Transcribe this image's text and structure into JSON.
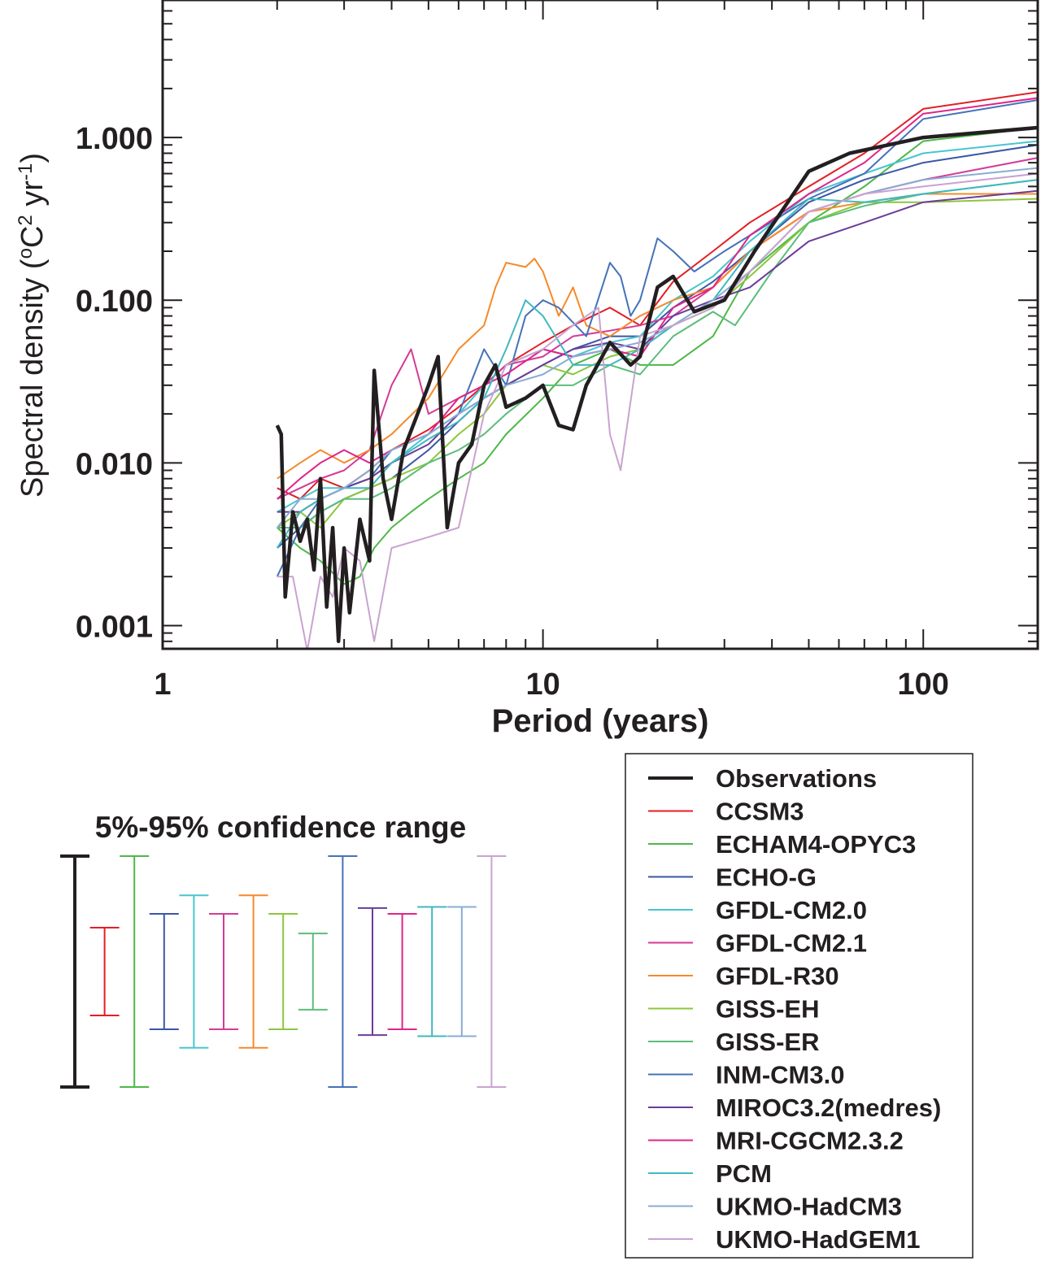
{
  "chart_data": {
    "type": "line",
    "xscale": "log",
    "yscale": "log",
    "xlabel": "Period (years)",
    "ylabel": "Spectral density (°C² yr⁻¹)",
    "ylabel_parts": [
      "Spectral density (",
      "o",
      "C",
      "2",
      " yr",
      "-1",
      ")"
    ],
    "xlim": [
      1,
      200
    ],
    "ylim": [
      0.00072,
      7
    ],
    "x_ticks": [
      {
        "value": 1,
        "label": "1"
      },
      {
        "value": 10,
        "label": "10"
      },
      {
        "value": 100,
        "label": "100"
      }
    ],
    "y_ticks": [
      {
        "value": 0.001,
        "label": "0.001"
      },
      {
        "value": 0.01,
        "label": "0.010"
      },
      {
        "value": 0.1,
        "label": "0.100"
      },
      {
        "value": 1,
        "label": "1.000"
      }
    ],
    "legend_placement": "bottom-right",
    "series": [
      {
        "name": "Observations",
        "color": "#231f20",
        "width": 4.5,
        "x": [
          2.0,
          2.05,
          2.1,
          2.2,
          2.3,
          2.4,
          2.5,
          2.6,
          2.7,
          2.8,
          2.9,
          3.0,
          3.1,
          3.3,
          3.5,
          3.6,
          3.8,
          4.0,
          4.3,
          4.6,
          5.0,
          5.3,
          5.6,
          6.0,
          6.5,
          7.0,
          7.5,
          8.0,
          9.0,
          10.0,
          11.0,
          12.0,
          13.0,
          15.0,
          17.0,
          18.0,
          20.0,
          22.0,
          25.0,
          30.0,
          36.0,
          50.0,
          64.0,
          100.0,
          200.0
        ],
        "y": [
          0.017,
          0.015,
          0.0015,
          0.005,
          0.0033,
          0.0045,
          0.0022,
          0.008,
          0.0013,
          0.004,
          0.0008,
          0.003,
          0.0012,
          0.0045,
          0.0025,
          0.037,
          0.008,
          0.0045,
          0.012,
          0.018,
          0.03,
          0.045,
          0.004,
          0.01,
          0.013,
          0.03,
          0.04,
          0.022,
          0.025,
          0.03,
          0.017,
          0.016,
          0.03,
          0.055,
          0.04,
          0.045,
          0.12,
          0.14,
          0.085,
          0.1,
          0.2,
          0.62,
          0.8,
          1.0,
          1.15
        ]
      },
      {
        "name": "CCSM3",
        "color": "#e41e26",
        "width": 2,
        "x": [
          2.0,
          2.3,
          2.6,
          3.0,
          3.5,
          4.0,
          5.0,
          6.0,
          7.0,
          8.0,
          10.0,
          12.0,
          15.0,
          18.0,
          22.0,
          28.0,
          35.0,
          50.0,
          70.0,
          100.0,
          200.0
        ],
        "y": [
          0.007,
          0.006,
          0.008,
          0.007,
          0.009,
          0.012,
          0.016,
          0.022,
          0.03,
          0.04,
          0.055,
          0.07,
          0.09,
          0.07,
          0.13,
          0.2,
          0.3,
          0.5,
          0.8,
          1.5,
          1.9
        ]
      },
      {
        "name": "ECHAM4-OPYC3",
        "color": "#4db848",
        "width": 2,
        "x": [
          2.0,
          2.3,
          2.6,
          3.0,
          3.3,
          3.6,
          4.0,
          4.5,
          5.0,
          6.0,
          7.0,
          8.0,
          10.0,
          12.0,
          15.0,
          18.0,
          22.0,
          28.0,
          35.0,
          50.0,
          70.0,
          100.0,
          200.0
        ],
        "y": [
          0.004,
          0.003,
          0.0025,
          0.0018,
          0.002,
          0.003,
          0.004,
          0.005,
          0.006,
          0.008,
          0.01,
          0.015,
          0.025,
          0.04,
          0.05,
          0.04,
          0.04,
          0.06,
          0.15,
          0.3,
          0.5,
          0.95,
          1.15
        ]
      },
      {
        "name": "ECHO-G",
        "color": "#3b56a6",
        "width": 2,
        "x": [
          2.0,
          2.3,
          2.6,
          3.0,
          3.5,
          4.0,
          5.0,
          6.0,
          7.0,
          8.0,
          10.0,
          12.0,
          15.0,
          18.0,
          22.0,
          28.0,
          35.0,
          50.0,
          70.0,
          100.0,
          200.0
        ],
        "y": [
          0.003,
          0.004,
          0.005,
          0.006,
          0.007,
          0.008,
          0.012,
          0.018,
          0.025,
          0.03,
          0.04,
          0.05,
          0.06,
          0.06,
          0.09,
          0.13,
          0.2,
          0.4,
          0.55,
          0.7,
          0.9
        ]
      },
      {
        "name": "GFDL-CM2.0",
        "color": "#48c5d0",
        "width": 2,
        "x": [
          2.0,
          2.3,
          2.6,
          3.0,
          3.5,
          4.0,
          5.0,
          6.0,
          7.0,
          8.0,
          10.0,
          12.0,
          15.0,
          18.0,
          22.0,
          28.0,
          35.0,
          50.0,
          70.0,
          100.0,
          200.0
        ],
        "y": [
          0.005,
          0.006,
          0.007,
          0.007,
          0.008,
          0.01,
          0.015,
          0.02,
          0.03,
          0.04,
          0.05,
          0.045,
          0.055,
          0.06,
          0.1,
          0.14,
          0.23,
          0.45,
          0.6,
          0.8,
          0.95
        ]
      },
      {
        "name": "GFDL-CM2.1",
        "color": "#d43a96",
        "width": 2,
        "x": [
          2.0,
          2.3,
          2.6,
          3.0,
          3.5,
          4.0,
          4.5,
          5.0,
          6.0,
          7.0,
          8.0,
          10.0,
          12.0,
          15.0,
          18.0,
          22.0,
          28.0,
          35.0,
          50.0,
          70.0,
          100.0,
          200.0
        ],
        "y": [
          0.006,
          0.007,
          0.008,
          0.009,
          0.012,
          0.03,
          0.05,
          0.02,
          0.025,
          0.03,
          0.04,
          0.045,
          0.06,
          0.065,
          0.07,
          0.08,
          0.12,
          0.2,
          0.35,
          0.45,
          0.55,
          0.75
        ]
      },
      {
        "name": "GFDL-R30",
        "color": "#f58a2a",
        "width": 2,
        "x": [
          2.0,
          2.3,
          2.6,
          3.0,
          3.5,
          4.0,
          5.0,
          6.0,
          7.0,
          7.5,
          8.0,
          9.0,
          9.5,
          10.0,
          11.0,
          12.0,
          13.0,
          15.0,
          18.0,
          22.0,
          28.0,
          35.0,
          50.0,
          70.0,
          100.0,
          200.0
        ],
        "y": [
          0.008,
          0.01,
          0.012,
          0.01,
          0.012,
          0.015,
          0.025,
          0.05,
          0.07,
          0.12,
          0.17,
          0.16,
          0.18,
          0.15,
          0.08,
          0.12,
          0.07,
          0.06,
          0.08,
          0.1,
          0.12,
          0.2,
          0.35,
          0.4,
          0.45,
          0.45
        ]
      },
      {
        "name": "GISS-EH",
        "color": "#8dc63f",
        "width": 2,
        "x": [
          2.0,
          2.3,
          2.6,
          3.0,
          3.5,
          4.0,
          5.0,
          6.0,
          7.0,
          8.0,
          10.0,
          12.0,
          15.0,
          18.0,
          22.0,
          28.0,
          35.0,
          50.0,
          70.0,
          100.0,
          200.0
        ],
        "y": [
          0.004,
          0.005,
          0.004,
          0.006,
          0.007,
          0.008,
          0.01,
          0.015,
          0.02,
          0.03,
          0.04,
          0.035,
          0.045,
          0.05,
          0.07,
          0.09,
          0.14,
          0.3,
          0.4,
          0.4,
          0.42
        ]
      },
      {
        "name": "GISS-ER",
        "color": "#5bbd7b",
        "width": 2,
        "x": [
          2.0,
          2.3,
          2.6,
          3.0,
          3.5,
          4.0,
          5.0,
          6.0,
          7.0,
          8.0,
          10.0,
          12.0,
          15.0,
          18.0,
          22.0,
          28.0,
          32.0,
          40.0,
          50.0,
          70.0,
          100.0,
          200.0
        ],
        "y": [
          0.004,
          0.004,
          0.005,
          0.006,
          0.006,
          0.007,
          0.01,
          0.012,
          0.015,
          0.02,
          0.03,
          0.03,
          0.04,
          0.035,
          0.06,
          0.085,
          0.07,
          0.15,
          0.3,
          0.38,
          0.45,
          0.55
        ]
      },
      {
        "name": "INM-CM3.0",
        "color": "#4472b8",
        "width": 2,
        "x": [
          2.0,
          2.3,
          2.6,
          3.0,
          3.5,
          4.0,
          5.0,
          6.0,
          7.0,
          8.0,
          9.0,
          10.0,
          11.0,
          13.0,
          15.0,
          16.0,
          17.0,
          18.0,
          20.0,
          22.0,
          25.0,
          30.0,
          35.0,
          50.0,
          70.0,
          100.0,
          200.0
        ],
        "y": [
          0.002,
          0.004,
          0.006,
          0.007,
          0.008,
          0.012,
          0.015,
          0.02,
          0.05,
          0.03,
          0.08,
          0.1,
          0.09,
          0.06,
          0.17,
          0.14,
          0.08,
          0.1,
          0.24,
          0.2,
          0.15,
          0.2,
          0.25,
          0.42,
          0.6,
          1.3,
          1.7
        ]
      },
      {
        "name": "MIROC3.2(medres)",
        "color": "#6a3d9a",
        "width": 2,
        "x": [
          2.0,
          2.3,
          2.6,
          3.0,
          3.5,
          4.0,
          5.0,
          6.0,
          7.0,
          8.0,
          10.0,
          12.0,
          15.0,
          18.0,
          22.0,
          28.0,
          35.0,
          50.0,
          70.0,
          100.0,
          200.0
        ],
        "y": [
          0.005,
          0.005,
          0.006,
          0.007,
          0.008,
          0.01,
          0.013,
          0.02,
          0.025,
          0.03,
          0.04,
          0.05,
          0.055,
          0.05,
          0.08,
          0.1,
          0.12,
          0.23,
          0.3,
          0.4,
          0.47
        ]
      },
      {
        "name": "MRI-CGCM2.3.2",
        "color": "#e0248a",
        "width": 2,
        "x": [
          2.0,
          2.3,
          2.6,
          3.0,
          3.5,
          4.0,
          5.0,
          6.0,
          7.0,
          8.0,
          10.0,
          12.0,
          15.0,
          18.0,
          22.0,
          28.0,
          35.0,
          50.0,
          70.0,
          100.0,
          200.0
        ],
        "y": [
          0.006,
          0.008,
          0.01,
          0.012,
          0.01,
          0.012,
          0.015,
          0.025,
          0.03,
          0.035,
          0.05,
          0.045,
          0.05,
          0.045,
          0.09,
          0.12,
          0.25,
          0.45,
          0.7,
          1.4,
          1.75
        ]
      },
      {
        "name": "PCM",
        "color": "#40b8c0",
        "width": 2,
        "x": [
          2.0,
          2.3,
          2.6,
          3.0,
          3.5,
          4.0,
          5.0,
          6.0,
          7.0,
          8.0,
          9.0,
          10.0,
          12.0,
          15.0,
          18.0,
          22.0,
          28.0,
          35.0,
          50.0,
          70.0,
          100.0,
          200.0
        ],
        "y": [
          0.003,
          0.005,
          0.006,
          0.007,
          0.007,
          0.01,
          0.014,
          0.018,
          0.025,
          0.05,
          0.1,
          0.08,
          0.04,
          0.04,
          0.05,
          0.07,
          0.1,
          0.2,
          0.42,
          0.4,
          0.45,
          0.55
        ]
      },
      {
        "name": "UKMO-HadCM3",
        "color": "#89acd4",
        "width": 2,
        "x": [
          2.0,
          2.3,
          2.6,
          3.0,
          3.5,
          4.0,
          5.0,
          6.0,
          7.0,
          8.0,
          10.0,
          12.0,
          15.0,
          18.0,
          22.0,
          28.0,
          35.0,
          50.0,
          70.0,
          100.0,
          200.0
        ],
        "y": [
          0.004,
          0.006,
          0.006,
          0.007,
          0.009,
          0.012,
          0.015,
          0.02,
          0.025,
          0.03,
          0.035,
          0.045,
          0.05,
          0.055,
          0.07,
          0.1,
          0.15,
          0.35,
          0.45,
          0.55,
          0.65
        ]
      },
      {
        "name": "UKMO-HadGEM1",
        "color": "#c9a3d0",
        "width": 2,
        "x": [
          2.0,
          2.2,
          2.4,
          2.6,
          2.8,
          3.0,
          3.3,
          3.6,
          4.0,
          5.0,
          6.0,
          7.0,
          8.0,
          10.0,
          12.0,
          14.0,
          15.0,
          16.0,
          18.0,
          22.0,
          28.0,
          35.0,
          50.0,
          70.0,
          100.0,
          200.0
        ],
        "y": [
          0.002,
          0.002,
          0.0007,
          0.002,
          0.0015,
          0.003,
          0.0025,
          0.0008,
          0.003,
          0.0035,
          0.004,
          0.02,
          0.04,
          0.05,
          0.07,
          0.09,
          0.015,
          0.009,
          0.06,
          0.07,
          0.09,
          0.15,
          0.35,
          0.45,
          0.5,
          0.6
        ]
      }
    ],
    "confidence_range": {
      "title": "5%-95% confidence range",
      "bars": [
        {
          "name": "Observations",
          "color": "#231f20",
          "low": -1.0,
          "high": 1.0
        },
        {
          "name": "CCSM3",
          "color": "#e41e26",
          "low": -0.38,
          "high": 0.38
        },
        {
          "name": "ECHAM4-OPYC3",
          "color": "#4db848",
          "low": -1.0,
          "high": 1.0
        },
        {
          "name": "ECHO-G",
          "color": "#3b56a6",
          "low": -0.5,
          "high": 0.5
        },
        {
          "name": "GFDL-CM2.0",
          "color": "#48c5d0",
          "low": -0.66,
          "high": 0.66
        },
        {
          "name": "GFDL-CM2.1",
          "color": "#d43a96",
          "low": -0.5,
          "high": 0.5
        },
        {
          "name": "GFDL-R30",
          "color": "#f58a2a",
          "low": -0.66,
          "high": 0.66
        },
        {
          "name": "GISS-EH",
          "color": "#8dc63f",
          "low": -0.5,
          "high": 0.5
        },
        {
          "name": "GISS-ER",
          "color": "#5bbd7b",
          "low": -0.33,
          "high": 0.33
        },
        {
          "name": "INM-CM3.0",
          "color": "#4472b8",
          "low": -1.0,
          "high": 1.0
        },
        {
          "name": "MIROC3.2(medres)",
          "color": "#6a3d9a",
          "low": -0.55,
          "high": 0.55
        },
        {
          "name": "MRI-CGCM2.3.2",
          "color": "#e0248a",
          "low": -0.5,
          "high": 0.5
        },
        {
          "name": "PCM",
          "color": "#40b8c0",
          "low": -0.56,
          "high": 0.56
        },
        {
          "name": "UKMO-HadCM3",
          "color": "#89acd4",
          "low": -0.56,
          "high": 0.56
        },
        {
          "name": "UKMO-HadGEM1",
          "color": "#c9a3d0",
          "low": -1.0,
          "high": 1.0
        }
      ]
    }
  }
}
